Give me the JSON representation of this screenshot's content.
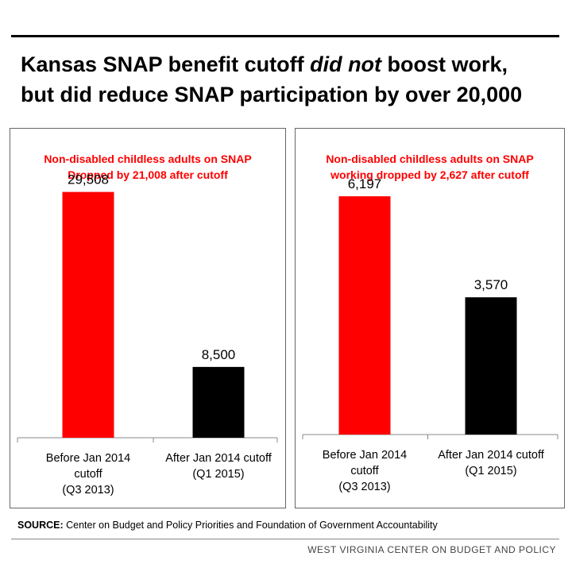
{
  "headline": {
    "part1": "Kansas SNAP benefit cutoff ",
    "emph": "did not",
    "part2": " boost work,",
    "line2": "but did reduce SNAP participation by over 20,000"
  },
  "chart_data": [
    {
      "type": "bar",
      "title_lines": [
        "Non-disabled childless adults on SNAP",
        "Dropped by 21,008 after cutoff"
      ],
      "categories": [
        [
          "Before Jan 2014",
          "cutoff",
          "(Q3 2013)"
        ],
        [
          "After Jan 2014 cutoff",
          "(Q1 2015)"
        ]
      ],
      "values": [
        29508,
        8500
      ],
      "value_labels": [
        "29,508",
        "8,500"
      ],
      "colors": [
        "#ff0000",
        "#000000"
      ],
      "ylim": [
        0,
        35000
      ]
    },
    {
      "type": "bar",
      "title_lines": [
        "Non-disabled childless adults on SNAP",
        "working dropped by 2,627 after cutoff"
      ],
      "categories": [
        [
          "Before Jan 2014",
          "cutoff",
          "(Q3 2013)"
        ],
        [
          "After Jan 2014 cutoff",
          "(Q1 2015)"
        ]
      ],
      "values": [
        6197,
        3570
      ],
      "value_labels": [
        "6,197",
        "3,570"
      ],
      "colors": [
        "#ff0000",
        "#000000"
      ],
      "ylim": [
        0,
        7500
      ]
    }
  ],
  "source": {
    "label": "SOURCE:",
    "text": " Center on Budget and Policy Priorities and Foundation of Government Accountability"
  },
  "footer": "WEST VIRGINIA CENTER ON BUDGET AND POLICY"
}
